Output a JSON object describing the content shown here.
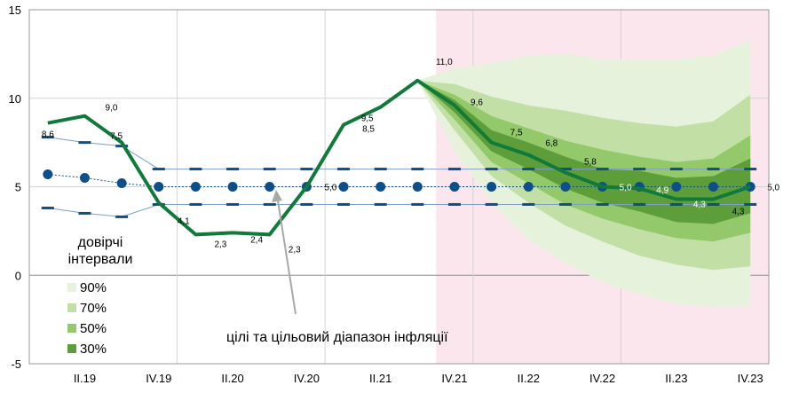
{
  "chart_data": {
    "type": "line",
    "x": [
      "I.19",
      "II.19",
      "III.19",
      "IV.19",
      "I.20",
      "II.20",
      "III.20",
      "IV.20",
      "I.21",
      "II.21",
      "III.21",
      "IV.21",
      "I.22",
      "II.22",
      "III.22",
      "IV.22",
      "I.23",
      "II.23",
      "III.23",
      "IV.23"
    ],
    "x_tick_labels": [
      "II.19",
      "IV.19",
      "II.20",
      "IV.20",
      "II.21",
      "IV.21",
      "II.22",
      "IV.22",
      "II.23",
      "IV.23"
    ],
    "ylim": [
      -5,
      15
    ],
    "y_ticks": [
      -5,
      0,
      5,
      10,
      15
    ],
    "series": [
      {
        "role": "inflation",
        "color": "#0f7a3a",
        "values": [
          8.6,
          9.0,
          7.5,
          4.1,
          2.3,
          2.4,
          2.3,
          5.0,
          8.5,
          9.5,
          11.0,
          9.6,
          7.5,
          6.8,
          5.8,
          5.0,
          4.9,
          4.3,
          4.3,
          5.0
        ]
      },
      {
        "role": "target-point",
        "color": "#0d4f8b",
        "values": [
          5.7,
          5.5,
          5.2,
          5.0,
          5.0,
          5.0,
          5.0,
          5.0,
          5.0,
          5.0,
          5.0,
          5.0,
          5.0,
          5.0,
          5.0,
          5.0,
          5.0,
          5.0,
          5.0,
          5.0
        ]
      },
      {
        "role": "target-range-upper",
        "color": "#0d4f8b",
        "values": [
          7.8,
          7.5,
          7.3,
          6.0,
          6.0,
          6.0,
          6.0,
          6.0,
          6.0,
          6.0,
          6.0,
          6.0,
          6.0,
          6.0,
          6.0,
          6.0,
          6.0,
          6.0,
          6.0,
          6.0
        ]
      },
      {
        "role": "target-range-lower",
        "color": "#0d4f8b",
        "values": [
          3.8,
          3.5,
          3.3,
          4.0,
          4.0,
          4.0,
          4.0,
          4.0,
          4.0,
          4.0,
          4.0,
          4.0,
          4.0,
          4.0,
          4.0,
          4.0,
          4.0,
          4.0,
          4.0,
          4.0
        ]
      }
    ],
    "data_labels": [
      {
        "x": "I.19",
        "text": "8,6"
      },
      {
        "x": "II.19",
        "text": "9,0"
      },
      {
        "x": "III.19",
        "text": "7,5"
      },
      {
        "x": "IV.19",
        "text": "4,1"
      },
      {
        "x": "I.20",
        "text": "2,3"
      },
      {
        "x": "II.20",
        "text": "2,4"
      },
      {
        "x": "III.20",
        "text": "2,3"
      },
      {
        "x": "IV.20",
        "text": "5,0"
      },
      {
        "x": "I.21",
        "text": "8,5"
      },
      {
        "x": "II.21",
        "text": "9,5"
      },
      {
        "x": "III.21",
        "text": "11,0"
      },
      {
        "x": "IV.21",
        "text": "9,6"
      },
      {
        "x": "I.22",
        "text": "7,5"
      },
      {
        "x": "II.22",
        "text": "6,8"
      },
      {
        "x": "III.22",
        "text": "5,8"
      },
      {
        "x": "IV.22",
        "text": "5,0"
      },
      {
        "x": "I.23",
        "text": "4,9"
      },
      {
        "x": "II.23",
        "text": "4,3"
      },
      {
        "x": "III.23",
        "text": "4,3"
      },
      {
        "x": "IV.23",
        "text": "5,0"
      }
    ],
    "forecast": {
      "start": "III.21",
      "shade_color": "#fbe6ee",
      "x": [
        "III.21",
        "IV.21",
        "I.22",
        "II.22",
        "III.22",
        "IV.22",
        "I.23",
        "II.23",
        "III.23",
        "IV.23"
      ],
      "bands": [
        {
          "label": "90%",
          "color": "#e6f2dc",
          "lower": [
            11.0,
            7.0,
            4.1,
            2.0,
            0.7,
            -0.4,
            -1.1,
            -1.6,
            -1.8,
            -1.7
          ],
          "upper": [
            11.0,
            11.7,
            12.0,
            12.4,
            12.5,
            12.2,
            12.2,
            12.2,
            12.4,
            13.3
          ]
        },
        {
          "label": "70%",
          "color": "#c2e0a6",
          "lower": [
            11.0,
            8.2,
            5.6,
            4.1,
            2.8,
            1.9,
            1.1,
            0.6,
            0.3,
            0.5
          ],
          "upper": [
            11.0,
            10.8,
            10.1,
            9.6,
            9.3,
            8.9,
            8.6,
            8.4,
            8.7,
            10.2
          ]
        },
        {
          "label": "50%",
          "color": "#93c96a",
          "lower": [
            11.0,
            8.8,
            6.4,
            5.2,
            4.0,
            3.2,
            2.6,
            2.1,
            1.9,
            2.4
          ],
          "upper": [
            11.0,
            10.2,
            9.0,
            8.3,
            7.6,
            7.1,
            6.7,
            6.4,
            6.6,
            7.9
          ]
        },
        {
          "label": "30%",
          "color": "#5e9e3a",
          "lower": [
            11.0,
            9.2,
            7.0,
            6.0,
            4.9,
            4.1,
            3.6,
            3.0,
            2.9,
            3.5
          ],
          "upper": [
            11.0,
            9.9,
            8.2,
            7.5,
            6.7,
            6.0,
            5.9,
            5.5,
            5.6,
            6.6
          ]
        }
      ]
    },
    "legend": {
      "placement": "bottom-left",
      "items": [
        "90%",
        "70%",
        "50%",
        "30%"
      ]
    },
    "annotations": {
      "intervals_line1": "довірчі",
      "intervals_line2": "інтервали",
      "target": "цілі та цільовий діапазон інфляції"
    },
    "grid": "vertical-and-horizontal"
  }
}
